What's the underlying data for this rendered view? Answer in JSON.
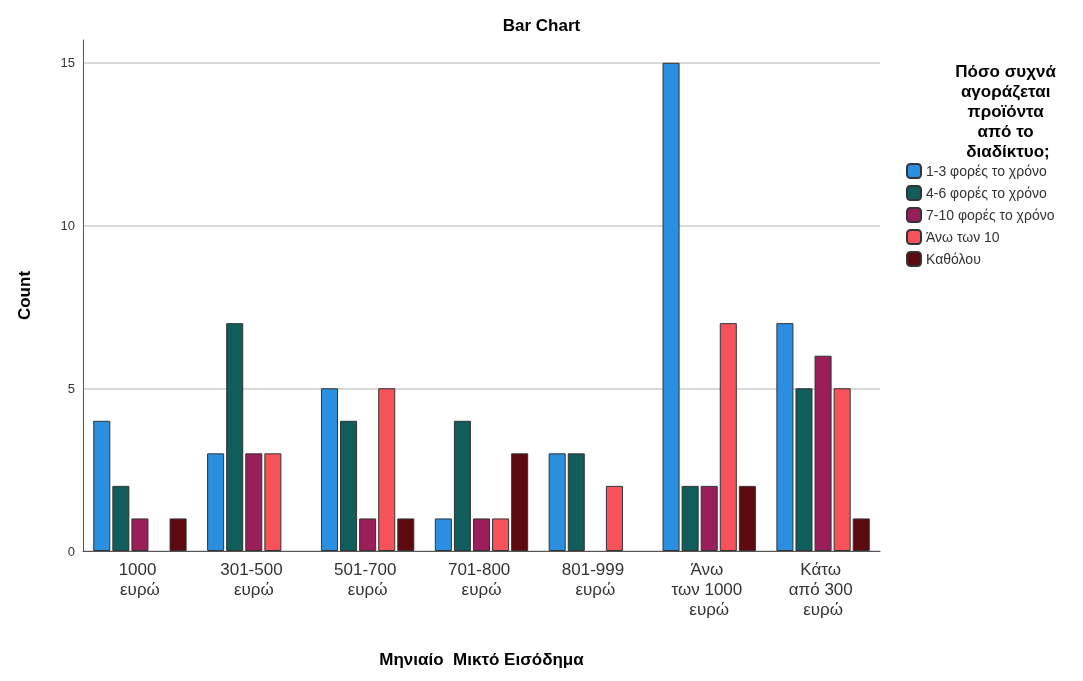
{
  "chart_data": {
    "type": "bar",
    "title": "Bar Chart",
    "xlabel": "Μηνιαίο  Μικτό Εισόδημα",
    "ylabel": "Count",
    "legend_title": "Πόσο συχνά αγοράζεται προϊόντα από το διαδίκτυο;",
    "categories": [
      "1000 ευρώ",
      "301-500 ευρώ",
      "501-700 ευρώ",
      "701-800 ευρώ",
      "801-999 ευρώ",
      "Άνω των 1000 ευρώ",
      "Κάτω από 300 ευρώ"
    ],
    "series": [
      {
        "name": "1-3 φορές το χρόνο",
        "color": "#2a8fe0",
        "values": [
          4,
          3,
          5,
          1,
          3,
          15,
          7
        ]
      },
      {
        "name": "4-6 φορές το χρόνο",
        "color": "#0f5e5c",
        "values": [
          2,
          7,
          4,
          4,
          3,
          2,
          5
        ]
      },
      {
        "name": "7-10 φορές το χρόνο",
        "color": "#9a1e5a",
        "values": [
          1,
          3,
          1,
          1,
          null,
          2,
          6
        ]
      },
      {
        "name": "Άνω των 10",
        "color": "#f8525a",
        "values": [
          null,
          3,
          5,
          1,
          2,
          7,
          5
        ]
      },
      {
        "name": "Καθόλου",
        "color": "#5c0a10",
        "values": [
          1,
          null,
          1,
          3,
          null,
          2,
          1
        ]
      }
    ],
    "ylim": [
      0,
      15.7
    ],
    "yticks": [
      0,
      5,
      10,
      15
    ],
    "grid": "y",
    "legend": "right"
  }
}
